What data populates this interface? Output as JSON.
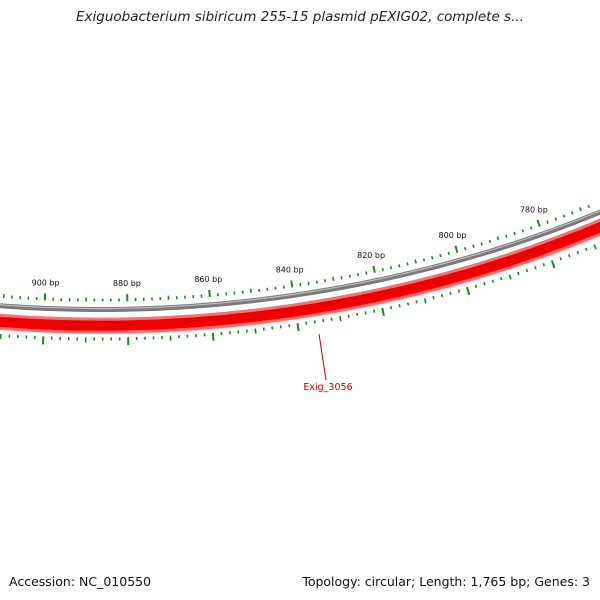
{
  "title": "Exiguobacterium sibiricum 255-15 plasmid pEXIG02, complete s...",
  "accession_text": "Accession: NC_010550",
  "summary_text": "Topology: circular; Length: 1,765 bp; Genes: 3",
  "colors": {
    "backbone": "#7a7a7a",
    "gene": "#ee0000",
    "gene_light": "#ff6f6f",
    "ticks": "#1a8a1a",
    "gene_label": "#cc0000"
  },
  "ruler": {
    "labeled_bp": [
      900,
      880,
      860,
      840,
      820,
      800,
      780
    ],
    "label_texts": [
      "900 bp",
      "880 bp",
      "860 bp",
      "840 bp",
      "820 bp",
      "800 bp",
      "780 bp"
    ]
  },
  "genes": [
    {
      "name": "Exig_3056",
      "strand": "-"
    }
  ]
}
